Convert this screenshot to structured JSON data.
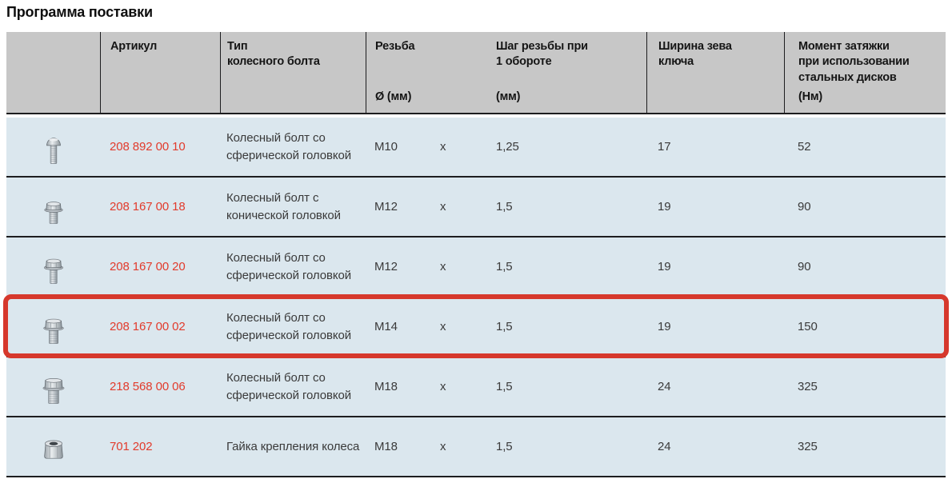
{
  "title": "Программа поставки",
  "colors": {
    "header_bg": "#c7c7c7",
    "row_bg": "#dbe7ee",
    "rule_line": "#1d1d1f",
    "highlight_red": "#d6382c",
    "article_red": "#e23b2c"
  },
  "table": {
    "headers": {
      "article": "Артикул",
      "type": "Тип\nколесного болта",
      "thread": "Резьба",
      "thread_sub": "Ø (мм)",
      "pitch": "Шаг резьбы при\n1 обороте",
      "pitch_sub": "(мм)",
      "wrench": "Ширина зева\nключа",
      "torque": "Момент затяжки\nпри использовании\nстальных дисков",
      "torque_sub": "(Нм)"
    },
    "rows": [
      {
        "icon": "wheel-bolt-spherical-long-icon",
        "article": "208 892 00 10",
        "type": "Колесный болт со сферической головкой",
        "diameter": "M10",
        "sep": "x",
        "pitch": "1,25",
        "wrench": "17",
        "torque": "52",
        "highlighted": false
      },
      {
        "icon": "wheel-bolt-conical-icon",
        "article": "208 167 00 18",
        "type": "Колесный болт с конической головкой",
        "diameter": "M12",
        "sep": "x",
        "pitch": "1,5",
        "wrench": "19",
        "torque": "90",
        "highlighted": false
      },
      {
        "icon": "wheel-bolt-spherical-icon",
        "article": "208 167 00 20",
        "type": "Колесный болт со сферической головкой",
        "diameter": "M12",
        "sep": "x",
        "pitch": "1,5",
        "wrench": "19",
        "torque": "90",
        "highlighted": false
      },
      {
        "icon": "wheel-bolt-spherical-m14-icon",
        "article": "208 167 00 02",
        "type": "Колесный болт со сферической головкой",
        "diameter": "M14",
        "sep": "x",
        "pitch": "1,5",
        "wrench": "19",
        "torque": "150",
        "highlighted": true
      },
      {
        "icon": "wheel-bolt-spherical-m18-icon",
        "article": "218 568 00 06",
        "type": "Колесный болт со сферической головкой",
        "diameter": "M18",
        "sep": "x",
        "pitch": "1,5",
        "wrench": "24",
        "torque": "325",
        "highlighted": false
      },
      {
        "icon": "wheel-nut-icon",
        "article": "701 202",
        "type": "Гайка крепления колеса",
        "diameter": "M18",
        "sep": "x",
        "pitch": "1,5",
        "wrench": "24",
        "torque": "325",
        "highlighted": false
      }
    ]
  }
}
